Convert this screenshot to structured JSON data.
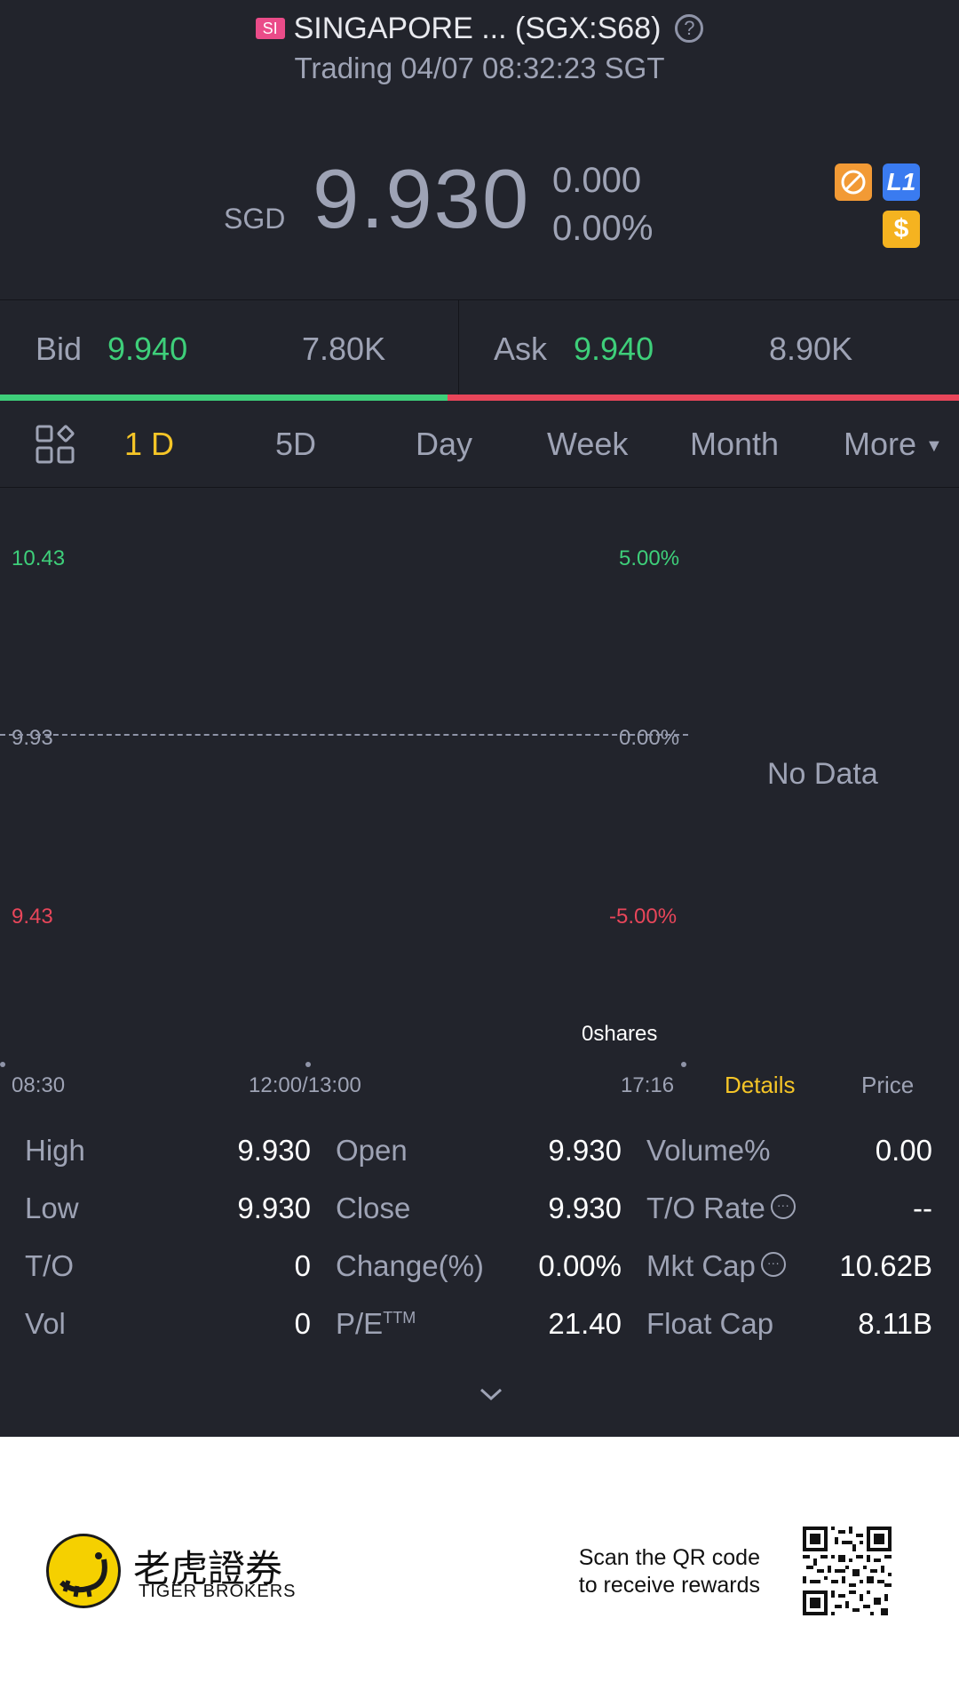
{
  "header": {
    "exchange_badge": "SI",
    "title": "SINGAPORE ... (SGX:S68)",
    "help_icon": "?",
    "status_line": "Trading 04/07 08:32:23 SGT"
  },
  "quote": {
    "currency": "SGD",
    "price": "9.930",
    "change": "0.000",
    "change_pct": "0.00%",
    "badges": {
      "l1_label": "L1",
      "dollar_label": "$"
    }
  },
  "orderbook": {
    "bid_label": "Bid",
    "bid_price": "9.940",
    "bid_size": "7.80K",
    "ask_label": "Ask",
    "ask_price": "9.940",
    "ask_size": "8.90K",
    "bid_color": "#3ecf7a",
    "ask_color": "#e8465a"
  },
  "tabs": [
    {
      "label": "1 D",
      "active": true
    },
    {
      "label": "5D"
    },
    {
      "label": "Day"
    },
    {
      "label": "Week"
    },
    {
      "label": "Month"
    },
    {
      "label": "More"
    }
  ],
  "chart": {
    "left_axis": [
      "10.43",
      "9.93",
      "9.43"
    ],
    "right_axis": [
      "5.00%",
      "0.00%",
      "-5.00%"
    ],
    "no_data": "No Data",
    "volume_label": "0shares",
    "time_labels": [
      "08:30",
      "12:00/13:00",
      "17:16"
    ],
    "side_tabs": {
      "details": "Details",
      "price": "Price"
    }
  },
  "stats": {
    "high_label": "High",
    "high": "9.930",
    "low_label": "Low",
    "low": "9.930",
    "to_label": "T/O",
    "to": "0",
    "vol_label": "Vol",
    "vol": "0",
    "open_label": "Open",
    "open": "9.930",
    "close_label": "Close",
    "close": "9.930",
    "change_label": "Change(%)",
    "change": "0.00%",
    "pe_label": "P/E",
    "pe_sup": "TTM",
    "pe": "21.40",
    "volpct_label": "Volume%",
    "volpct": "0.00",
    "torate_label": "T/O Rate",
    "torate": "--",
    "mktcap_label": "Mkt Cap",
    "mktcap": "10.62B",
    "floatcap_label": "Float Cap",
    "floatcap": "8.11B"
  },
  "footer": {
    "brand_cn": "老虎證券",
    "brand_en": "TIGER BROKERS",
    "qr_line1": "Scan the QR code",
    "qr_line2": "to receive rewards"
  }
}
